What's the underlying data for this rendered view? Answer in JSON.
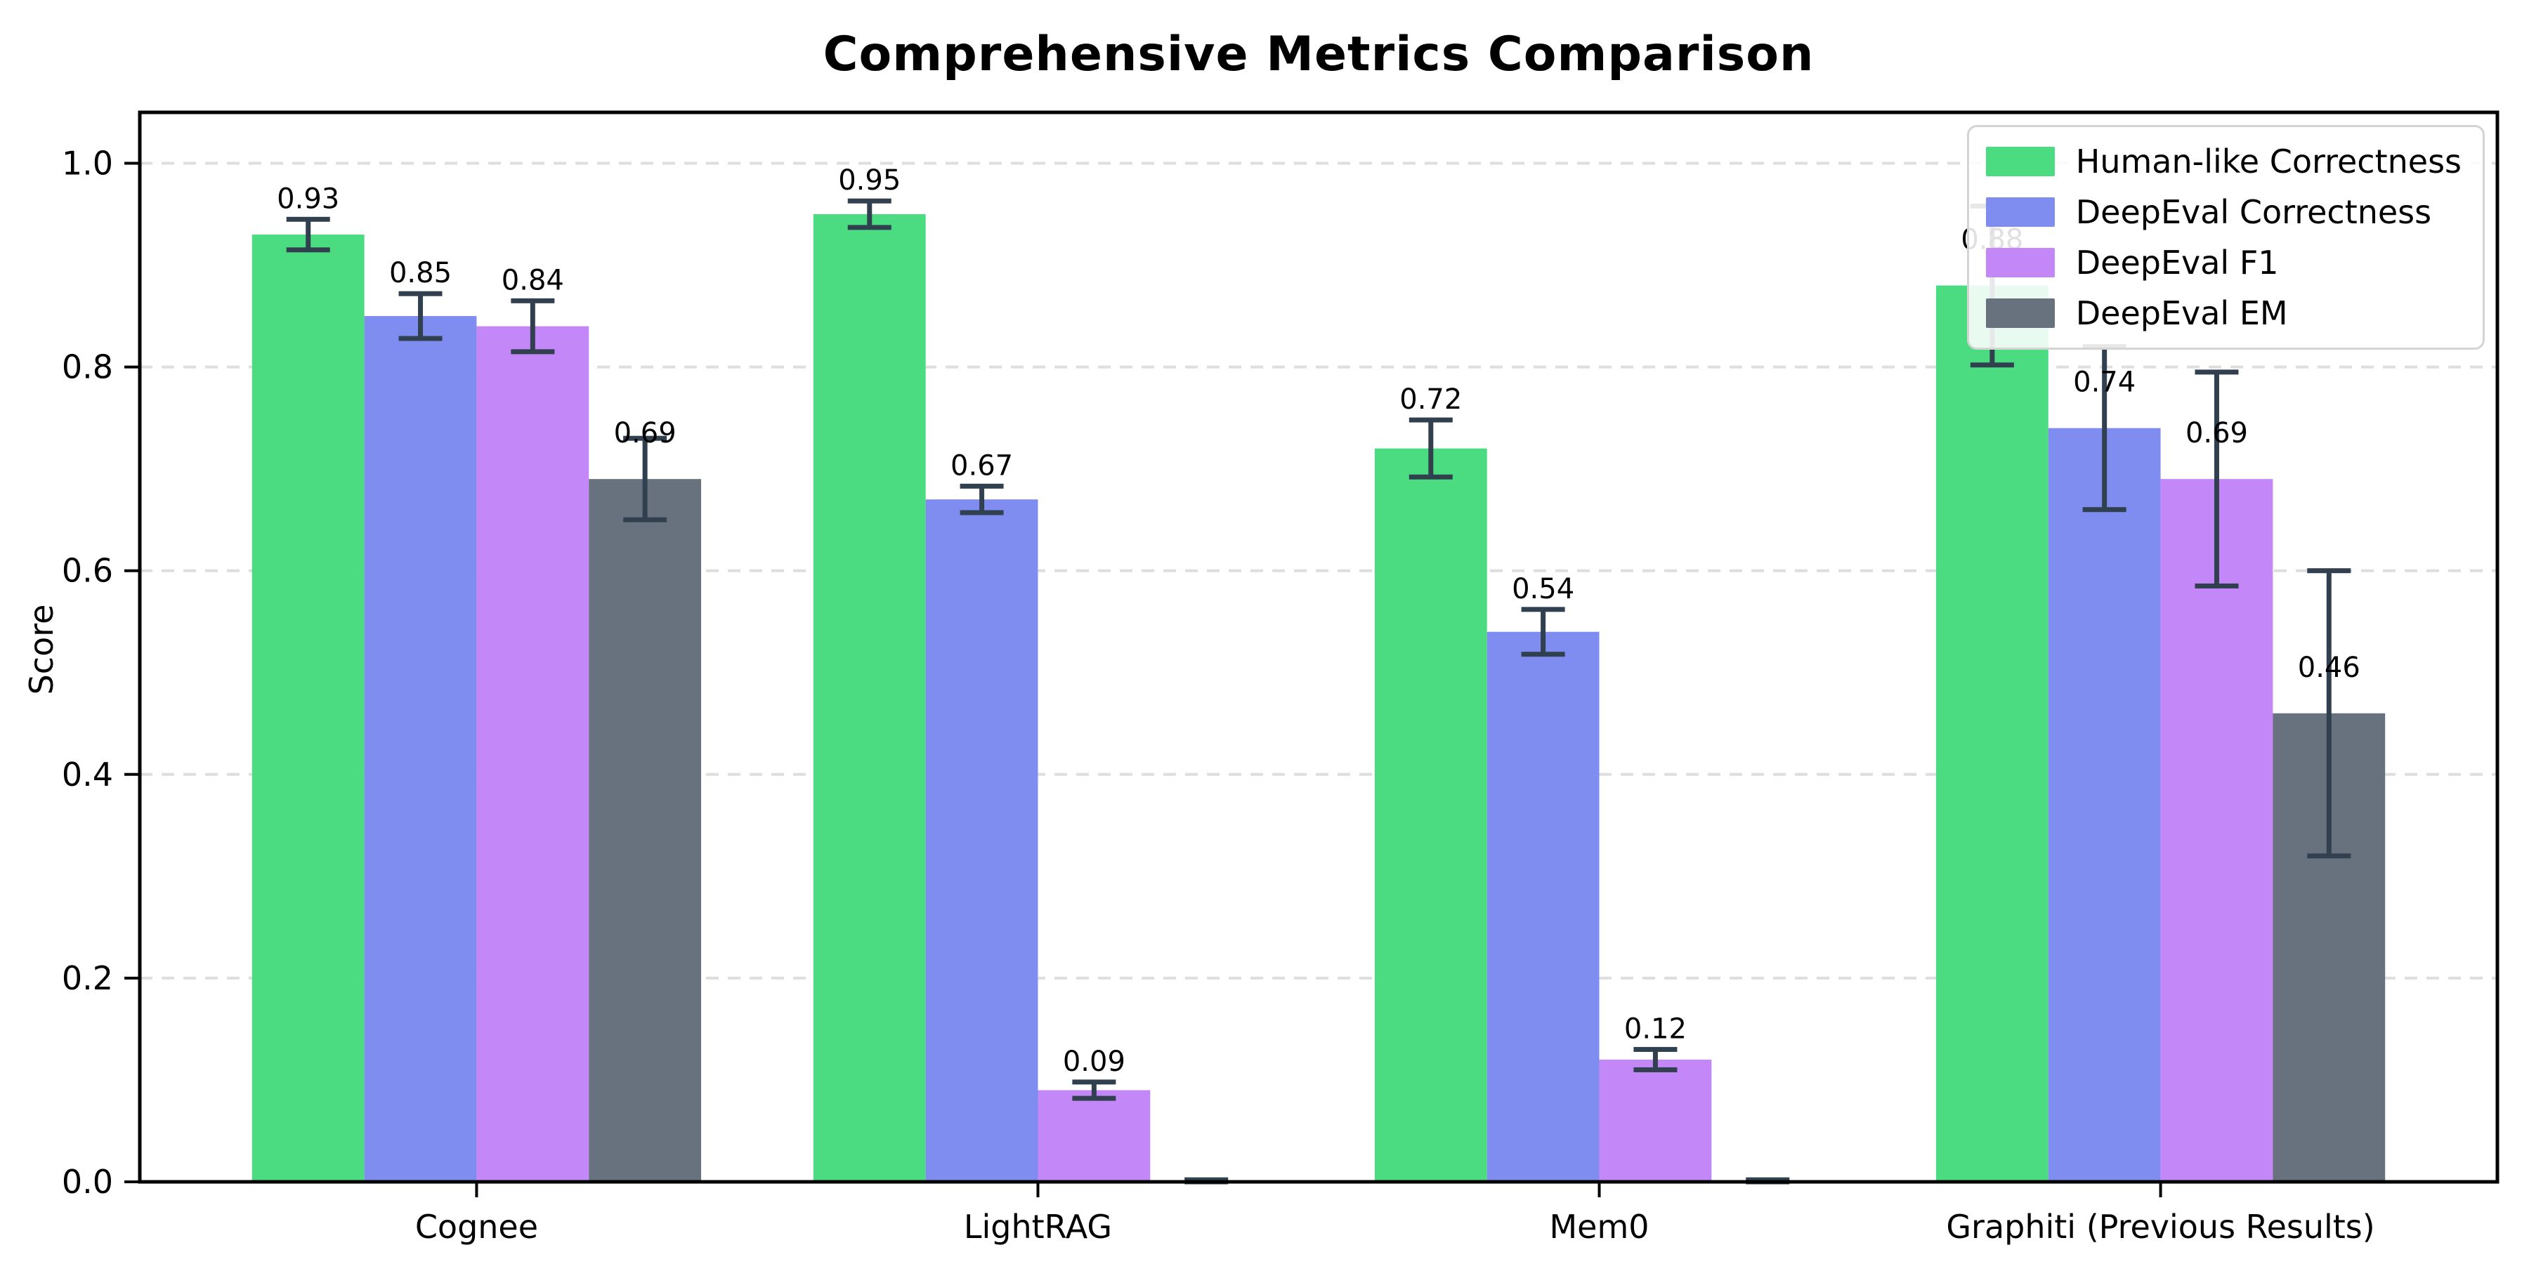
{
  "title": "Comprehensive Metrics Comparison",
  "ylabel": "Score",
  "chart_data": {
    "type": "bar",
    "categories": [
      "Cognee",
      "LightRAG",
      "Mem0",
      "Graphiti (Previous Results)"
    ],
    "series": [
      {
        "name": "Human-like Correctness",
        "color": "#4bdb81",
        "values": [
          0.93,
          0.95,
          0.72,
          0.88
        ],
        "errors": [
          0.015,
          0.013,
          0.028,
          0.078
        ],
        "labels": [
          "0.93",
          "0.95",
          "0.72",
          "0.88"
        ]
      },
      {
        "name": "DeepEval Correctness",
        "color": "#7f8cf0",
        "values": [
          0.85,
          0.67,
          0.54,
          0.74
        ],
        "errors": [
          0.022,
          0.013,
          0.022,
          0.08
        ],
        "labels": [
          "0.85",
          "0.67",
          "0.54",
          "0.74"
        ]
      },
      {
        "name": "DeepEval F1",
        "color": "#c387f8",
        "values": [
          0.84,
          0.09,
          0.12,
          0.69
        ],
        "errors": [
          0.025,
          0.008,
          0.01,
          0.105
        ],
        "labels": [
          "0.84",
          "0.09",
          "0.12",
          "0.69"
        ]
      },
      {
        "name": "DeepEval EM",
        "color": "#68727f",
        "values": [
          0.69,
          0.0,
          0.0,
          0.46
        ],
        "errors": [
          0.04,
          0.002,
          0.002,
          0.14
        ],
        "labels": [
          "0.69",
          "",
          "",
          "0.46"
        ]
      }
    ],
    "ylabel": "Score",
    "xlabel": "",
    "yticks": [
      "0.0",
      "0.2",
      "0.4",
      "0.6",
      "0.8",
      "1.0"
    ],
    "ytick_values": [
      0.0,
      0.2,
      0.4,
      0.6,
      0.8,
      1.0
    ],
    "ylim": [
      0,
      1.05
    ],
    "grid": "horizontal-dashed",
    "gridline_color": "#dedede",
    "errorbar_color": "#31404f",
    "spine_color": "#000000",
    "legend_position": "upper-right"
  }
}
